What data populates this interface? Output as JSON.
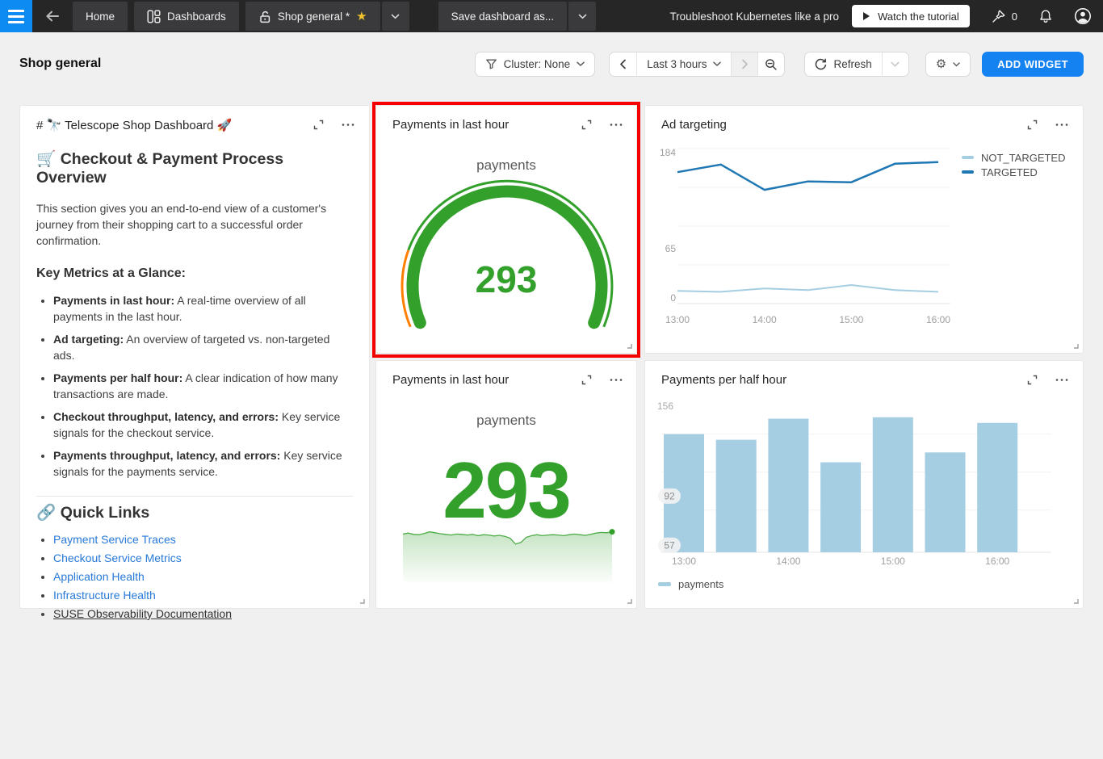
{
  "colors": {
    "hamburger_blue": "#0e8bf2",
    "accent_blue": "#1482f0",
    "green": "#33a02c",
    "orange": "#ff7f00",
    "targeted_blue": "#1f78b4",
    "not_targeted_blue": "#a6cee3",
    "bar_blue": "#a6cee3",
    "link_blue": "#2779d8",
    "highlight_red": "#f50000",
    "star_yellow": "#f2c42b"
  },
  "topbar": {
    "tabs": [
      {
        "label": "Home"
      },
      {
        "label": "Dashboards"
      },
      {
        "label": "Shop general *"
      }
    ],
    "save_button": "Save dashboard as...",
    "promo_text": "Troubleshoot Kubernetes like a pro",
    "watch_button": "Watch the tutorial",
    "pin_count": "0"
  },
  "header": {
    "title": "Shop general",
    "cluster_filter": "Cluster: None",
    "time_range": "Last 3 hours",
    "refresh_label": "Refresh",
    "add_widget_label": "ADD WIDGET"
  },
  "markdown_widget": {
    "title": "# 🔭 Telescope Shop Dashboard 🚀",
    "heading": "🛒 Checkout & Payment Process Overview",
    "intro": "This section gives you an end-to-end view of a customer's journey from their shopping cart to a successful order confirmation.",
    "metrics_heading": "Key Metrics at a Glance:",
    "bullets": [
      {
        "lead": "Payments in last hour:",
        "text": " A real-time overview of all payments in the last hour."
      },
      {
        "lead": "Ad targeting:",
        "text": " An overview of targeted vs. non-targeted ads."
      },
      {
        "lead": "Payments per half hour:",
        "text": " A clear indication of how many transactions are made."
      },
      {
        "lead": "Checkout throughput, latency, and errors:",
        "text": " Key service signals for the checkout service."
      },
      {
        "lead": "Payments throughput, latency, and errors:",
        "text": " Key service signals for the payments service."
      }
    ],
    "links_heading": "🔗 Quick Links",
    "links": [
      {
        "label": "Payment Service Traces"
      },
      {
        "label": "Checkout Service Metrics"
      },
      {
        "label": "Application Health"
      },
      {
        "label": "Infrastructure Health"
      },
      {
        "label": "SUSE Observability Documentation"
      }
    ]
  },
  "gauge_widget": {
    "title": "Payments in last hour",
    "metric_label": "payments",
    "value": "293",
    "chart_data": {
      "type": "gauge",
      "value": 293,
      "progress_color": "#33a02c",
      "range_segments": [
        {
          "color": "#ff7f00",
          "fraction": 0.19
        },
        {
          "color": "#33a02c",
          "fraction": 0.81
        }
      ]
    }
  },
  "ad_widget": {
    "title": "Ad targeting",
    "chart_data": {
      "type": "line",
      "x": [
        "13:00",
        "13:30",
        "14:00",
        "14:30",
        "15:00",
        "15:30",
        "16:00"
      ],
      "x_tick_indices": [
        0,
        2,
        4,
        6
      ],
      "series": [
        {
          "name": "NOT_TARGETED",
          "color": "#a6cee3",
          "width": 2,
          "values": [
            15,
            14,
            18,
            16,
            22,
            16,
            14
          ]
        },
        {
          "name": "TARGETED",
          "color": "#1f78b4",
          "width": 2.5,
          "values": [
            156,
            165,
            135,
            145,
            144,
            166,
            168
          ]
        }
      ],
      "ylim": [
        0,
        184
      ],
      "y_tick_labels": [
        184,
        65,
        0
      ],
      "gridline_values": [
        184,
        138,
        92,
        46,
        0
      ],
      "legend_position": "right"
    }
  },
  "number_widget": {
    "title": "Payments in last hour",
    "metric_label": "payments",
    "value": "293",
    "chart_data": {
      "type": "area-sparkline",
      "color": "#33a02c",
      "values": [
        289,
        292,
        288,
        287,
        291,
        296,
        293,
        290,
        288,
        286,
        289,
        288,
        286,
        288,
        284,
        287,
        286,
        283,
        285,
        282,
        276,
        258,
        263,
        279,
        284,
        287,
        284,
        286,
        287,
        286,
        284,
        287,
        289,
        287,
        285,
        288,
        292,
        294,
        293,
        296
      ]
    }
  },
  "bars_widget": {
    "title": "Payments per half hour",
    "legend": "payments",
    "chart_data": {
      "type": "bar",
      "x": [
        "13:00",
        "13:30",
        "14:00",
        "14:30",
        "15:00",
        "15:30",
        "16:00"
      ],
      "x_tick_indices": [
        0,
        2,
        4,
        6
      ],
      "values": [
        136,
        132,
        147,
        116,
        148,
        123,
        144
      ],
      "color": "#a6cee3",
      "ylim": [
        52,
        160
      ],
      "y_tick_labels": [
        156,
        92,
        57
      ],
      "gridline_values": [
        136,
        109,
        82
      ],
      "series_name": "payments"
    }
  }
}
